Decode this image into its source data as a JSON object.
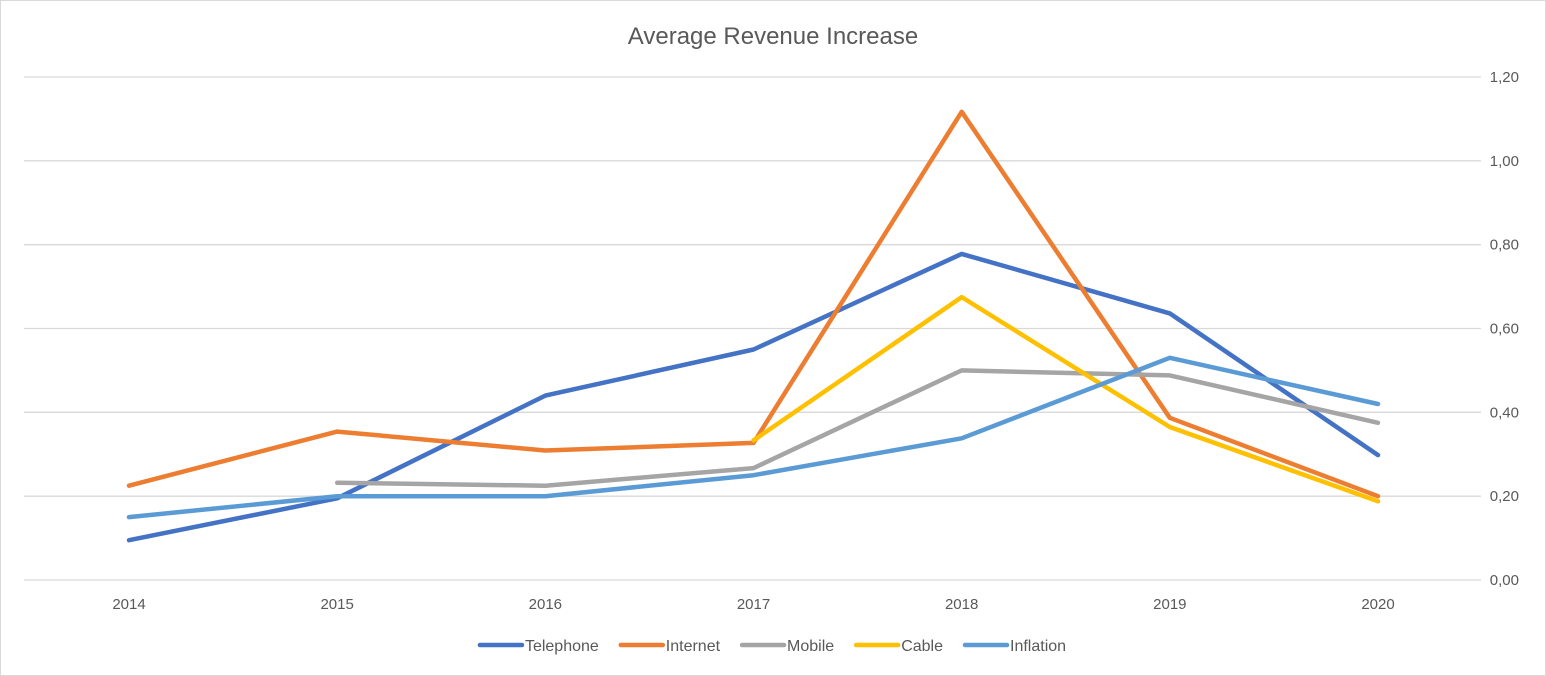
{
  "chart_data": {
    "type": "line",
    "title": "Average Revenue Increase",
    "xlabel": "",
    "ylabel": "",
    "categories": [
      "2014",
      "2015",
      "2016",
      "2017",
      "2018",
      "2019",
      "2020"
    ],
    "ylim": [
      0,
      1.2
    ],
    "yticks": [
      0,
      0.2,
      0.4,
      0.6,
      0.8,
      1.0,
      1.2
    ],
    "ytick_labels": [
      "0,00",
      "0,20",
      "0,40",
      "0,60",
      "0,80",
      "1,00",
      "1,20"
    ],
    "y_axis_side": "right",
    "grid": true,
    "legend_position": "bottom",
    "series": [
      {
        "name": "Telephone",
        "color": "#4472C4",
        "values": [
          0.095,
          0.195,
          0.44,
          0.55,
          0.778,
          0.636,
          0.298
        ]
      },
      {
        "name": "Internet",
        "color": "#ED7D31",
        "values": [
          0.225,
          0.354,
          0.309,
          0.327,
          1.117,
          0.387,
          0.2
        ]
      },
      {
        "name": "Mobile",
        "color": "#A5A5A5",
        "values": [
          null,
          0.232,
          0.225,
          0.267,
          0.5,
          0.488,
          0.375
        ]
      },
      {
        "name": "Cable",
        "color": "#FFC000",
        "values": [
          null,
          null,
          null,
          0.333,
          0.675,
          0.365,
          0.188
        ]
      },
      {
        "name": "Inflation",
        "color": "#5B9BD5",
        "values": [
          0.15,
          0.2,
          0.2,
          0.25,
          0.338,
          0.53,
          0.42
        ]
      }
    ]
  }
}
